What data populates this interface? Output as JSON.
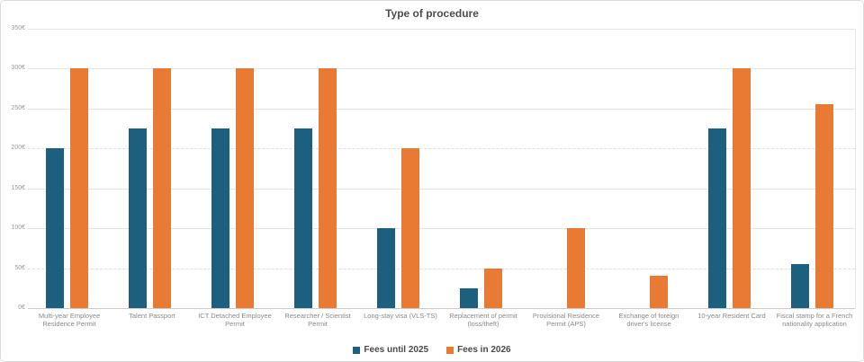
{
  "chart_data": {
    "type": "bar",
    "title": "Type of procedure",
    "categories": [
      "Multi-year Employee Residence Permit",
      "Talent Passport",
      "ICT Detached Employee Permit",
      "Researcher / Scientist Permit",
      "Long-stay visa (VLS-TS)",
      "Replacement of permit (loss/theft)",
      "Provisional Residence Permit (APS)",
      "Exchange of foreign driver's license",
      "10-year Resident Card",
      "Fiscal stamp for a French nationality application"
    ],
    "series": [
      {
        "name": "Fees until 2025",
        "color": "#1c5f7f",
        "values": [
          200,
          225,
          225,
          225,
          100,
          25,
          0,
          0,
          225,
          55
        ]
      },
      {
        "name": "Fees in 2026",
        "color": "#e87a33",
        "values": [
          300,
          300,
          300,
          300,
          200,
          50,
          100,
          40,
          300,
          255
        ]
      }
    ],
    "ylim": [
      0,
      350
    ],
    "ytick_step": 50,
    "ytick_suffix": "€",
    "ytick_labels": [
      "0€",
      "50€",
      "100€",
      "150€",
      "200€",
      "250€",
      "300€",
      "350€"
    ],
    "grid": true,
    "dashed_gridlines": [
      200,
      50
    ],
    "legend_position": "bottom"
  }
}
